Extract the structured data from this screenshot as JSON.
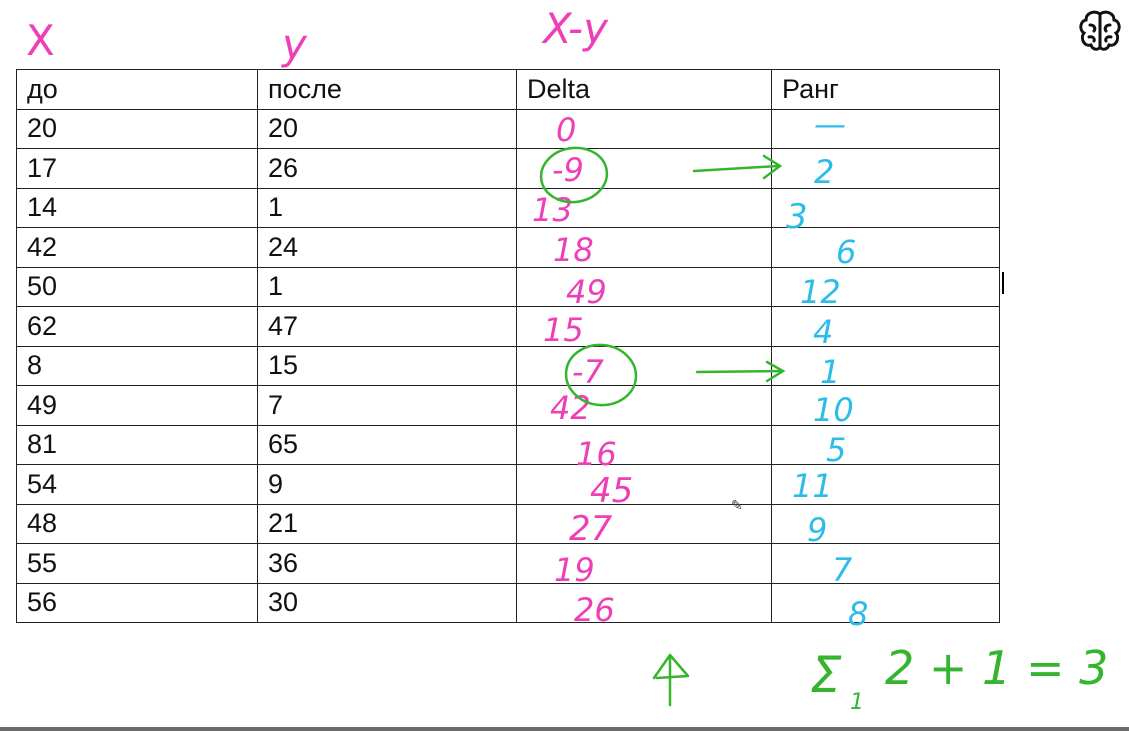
{
  "annotations": {
    "col_x": "X",
    "col_y": "y",
    "col_xy": "X-y",
    "up_arrow": "↑",
    "formula": {
      "sigma": "Σ",
      "sub": "1",
      "expr": "2 + 1 = 3"
    }
  },
  "table": {
    "headers": [
      "до",
      "после",
      "Delta",
      "Ранг"
    ],
    "rows": [
      [
        "20",
        "20"
      ],
      [
        "17",
        "26"
      ],
      [
        "14",
        "1"
      ],
      [
        "42",
        "24"
      ],
      [
        "50",
        "1"
      ],
      [
        "62",
        "47"
      ],
      [
        "8",
        "15"
      ],
      [
        "49",
        "7"
      ],
      [
        "81",
        "65"
      ],
      [
        "54",
        "9"
      ],
      [
        "48",
        "21"
      ],
      [
        "55",
        "36"
      ],
      [
        "56",
        "30"
      ]
    ]
  },
  "delta_values": [
    "0",
    "-9",
    "13",
    "18",
    "49",
    "15",
    "-7",
    "42",
    "16",
    "45",
    "27",
    "19",
    "26"
  ],
  "rank_values": [
    "—",
    "2",
    "3",
    "6",
    "12",
    "4",
    "1",
    "10",
    "5",
    "11",
    "9",
    "7",
    "8"
  ],
  "colors": {
    "pink_ink": "#ee3fb6",
    "blue_ink": "#2bbde8",
    "green_ink": "#35b52e",
    "grid": "#222222"
  },
  "icons": {
    "top_right": "brain-icon",
    "pointer": "pen-cursor-icon"
  }
}
